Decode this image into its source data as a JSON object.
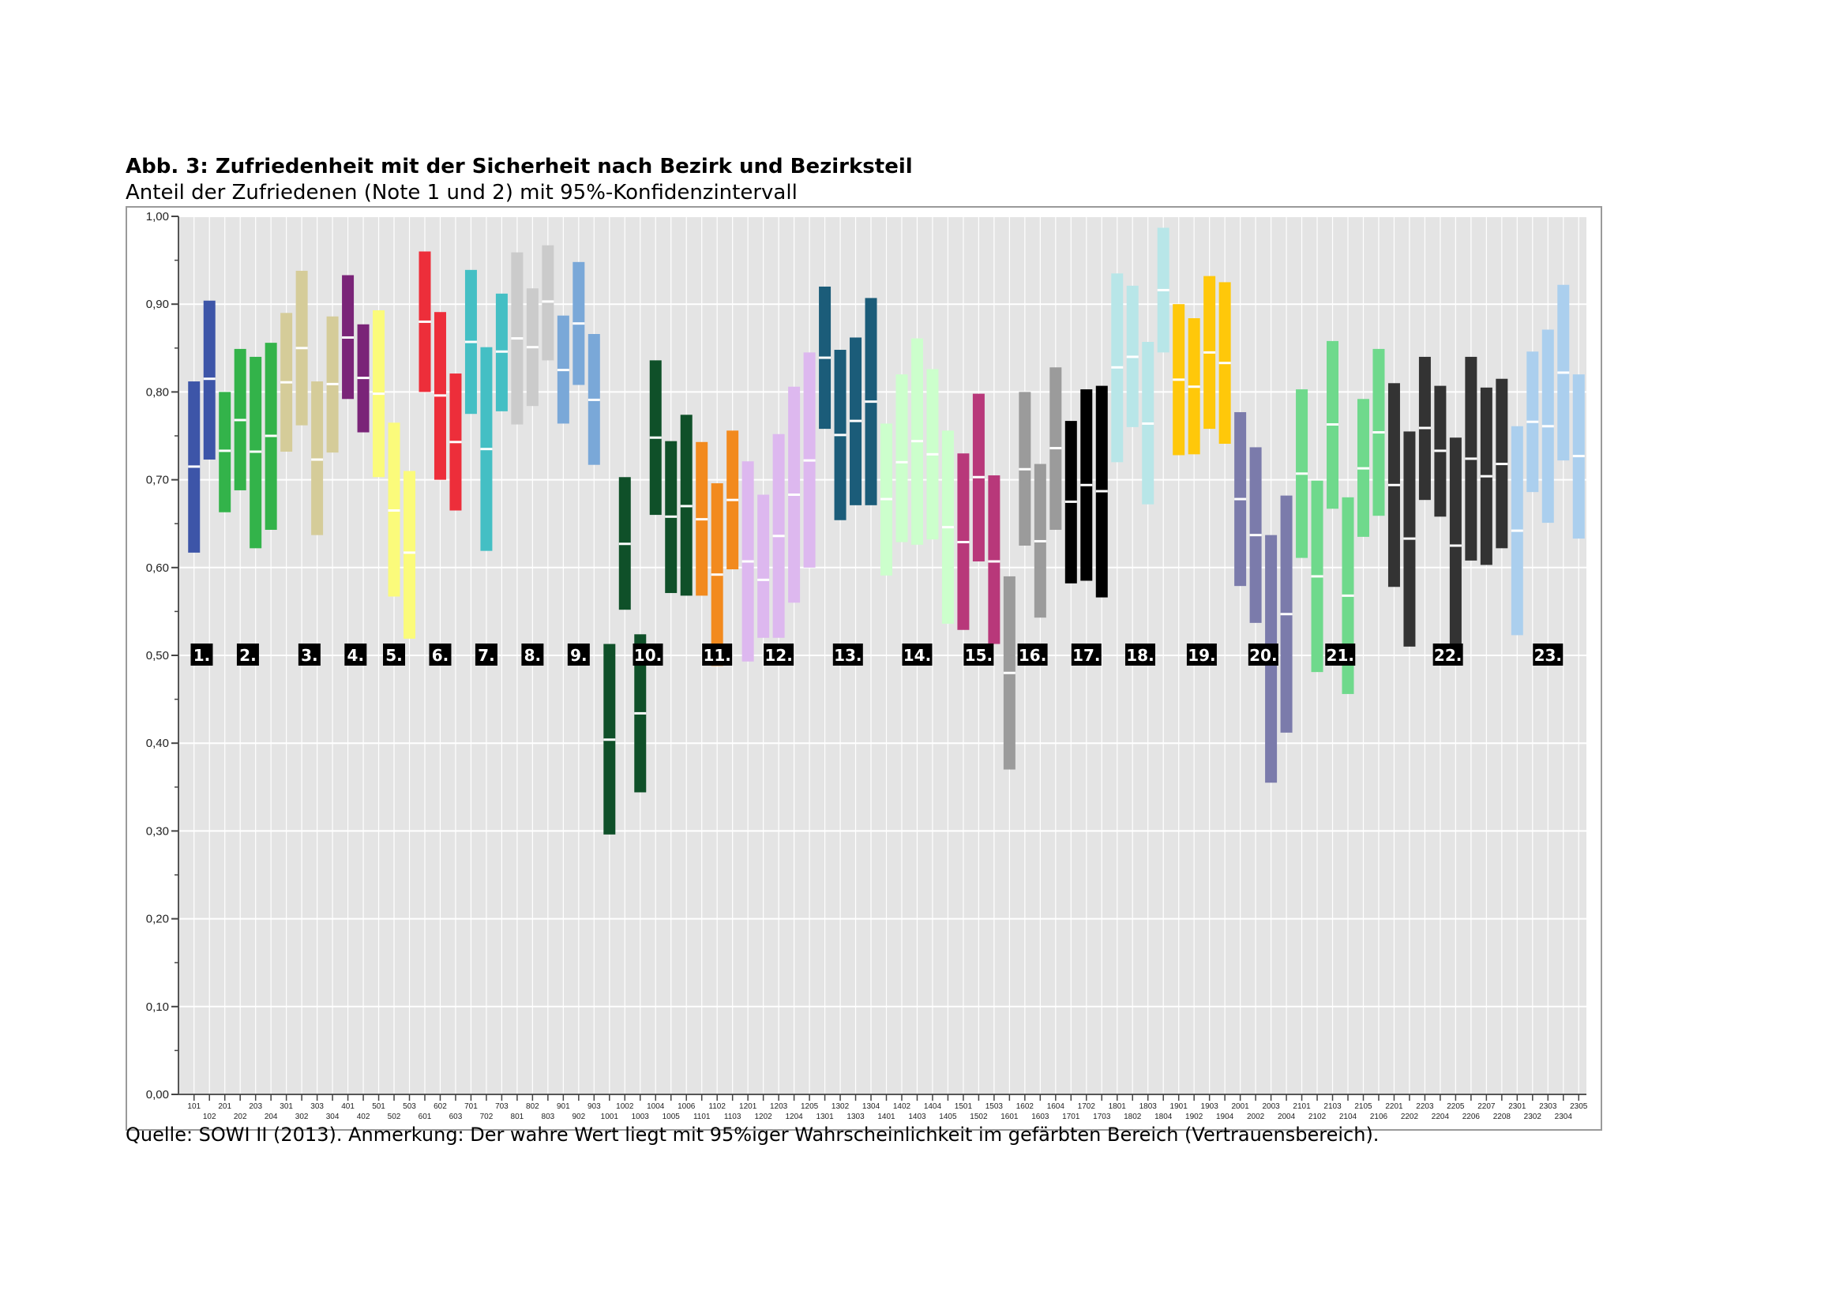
{
  "chart_data": {
    "type": "range-bar",
    "title": "Abb. 3: Zufriedenheit mit der Sicherheit nach Bezirk und Bezirksteil",
    "subtitle": "Anteil der Zufriedenen (Note 1 und 2) mit 95%-Konfidenzintervall",
    "source": "Quelle: SOWI II (2013). Anmerkung: Der wahre Wert liegt mit 95%iger Wahrscheinlichkeit im gefärbten Bereich (Vertrauensbereich).",
    "ylim": [
      0,
      1
    ],
    "y_ticks": [
      "0,00",
      "0,10",
      "0,20",
      "0,30",
      "0,40",
      "0,50",
      "0,60",
      "0,70",
      "0,80",
      "0,90",
      "1,00"
    ],
    "x_labels_top": [
      "101",
      "201",
      "203",
      "301",
      "303",
      "401",
      "501",
      "503",
      "602",
      "701",
      "703",
      "802",
      "901",
      "903",
      "1002",
      "1004",
      "1006",
      "1102",
      "1201",
      "1203",
      "1205",
      "1302",
      "1304",
      "1402",
      "1404",
      "1501",
      "1503",
      "1602",
      "1604",
      "1702",
      "1801",
      "1803",
      "1901",
      "1903",
      "2001",
      "2003",
      "2101",
      "2103",
      "2105",
      "2201",
      "2203",
      "2205",
      "2207",
      "2301",
      "2303",
      "2305"
    ],
    "x_labels_bottom": [
      "102",
      "202",
      "204",
      "302",
      "304",
      "402",
      "502",
      "601",
      "603",
      "702",
      "801",
      "803",
      "902",
      "1001",
      "1003",
      "1005",
      "1101",
      "1103",
      "1202",
      "1204",
      "1301",
      "1303",
      "1401",
      "1403",
      "1405",
      "1502",
      "1601",
      "1603",
      "1701",
      "1703",
      "1802",
      "1804",
      "1902",
      "1904",
      "2002",
      "2004",
      "2102",
      "2104",
      "2106",
      "2202",
      "2204",
      "2206",
      "2208",
      "2302",
      "2304"
    ],
    "groups": [
      {
        "label": "1.",
        "color": "#3d55a8",
        "bars": [
          [
            0.617,
            0.812,
            0.715
          ],
          [
            0.723,
            0.904,
            0.815
          ]
        ]
      },
      {
        "label": "2.",
        "color": "#33b34a",
        "bars": [
          [
            0.663,
            0.8,
            0.733
          ],
          [
            0.688,
            0.849,
            0.768
          ],
          [
            0.622,
            0.84,
            0.732
          ],
          [
            0.643,
            0.856,
            0.75
          ]
        ]
      },
      {
        "label": "3.",
        "color": "#d5cc99",
        "bars": [
          [
            0.732,
            0.89,
            0.811
          ],
          [
            0.762,
            0.938,
            0.85
          ],
          [
            0.637,
            0.812,
            0.723
          ],
          [
            0.731,
            0.886,
            0.809
          ]
        ]
      },
      {
        "label": "4.",
        "color": "#7a2478",
        "bars": [
          [
            0.792,
            0.933,
            0.862
          ],
          [
            0.754,
            0.877,
            0.816
          ]
        ]
      },
      {
        "label": "5.",
        "color": "#fbfb7b",
        "bars": [
          [
            0.703,
            0.893,
            0.798
          ],
          [
            0.567,
            0.765,
            0.665
          ],
          [
            0.519,
            0.71,
            0.617
          ]
        ]
      },
      {
        "label": "6.",
        "color": "#ed2e3a",
        "bars": [
          [
            0.8,
            0.96,
            0.88
          ],
          [
            0.7,
            0.891,
            0.796
          ],
          [
            0.665,
            0.821,
            0.743
          ]
        ]
      },
      {
        "label": "7.",
        "color": "#44bfc4",
        "bars": [
          [
            0.775,
            0.939,
            0.857
          ],
          [
            0.619,
            0.851,
            0.735
          ],
          [
            0.778,
            0.912,
            0.846
          ]
        ]
      },
      {
        "label": "8.",
        "color": "#cbcbcb",
        "bars": [
          [
            0.763,
            0.959,
            0.861
          ],
          [
            0.784,
            0.918,
            0.851
          ],
          [
            0.836,
            0.967,
            0.903
          ]
        ]
      },
      {
        "label": "9.",
        "color": "#7aa8d8",
        "bars": [
          [
            0.764,
            0.887,
            0.825
          ],
          [
            0.808,
            0.948,
            0.878
          ],
          [
            0.717,
            0.866,
            0.791
          ]
        ]
      },
      {
        "label": "10.",
        "color": "#0f5029",
        "bars": [
          [
            0.296,
            0.513,
            0.404
          ],
          [
            0.552,
            0.703,
            0.627
          ],
          [
            0.344,
            0.524,
            0.434
          ],
          [
            0.66,
            0.836,
            0.748
          ],
          [
            0.571,
            0.744,
            0.658
          ],
          [
            0.568,
            0.774,
            0.67
          ]
        ]
      },
      {
        "label": "11.",
        "color": "#f28a1e",
        "bars": [
          [
            0.568,
            0.743,
            0.655
          ],
          [
            0.488,
            0.696,
            0.592
          ],
          [
            0.598,
            0.756,
            0.677
          ]
        ]
      },
      {
        "label": "12.",
        "color": "#ddb8ef",
        "bars": [
          [
            0.493,
            0.721,
            0.607
          ],
          [
            0.52,
            0.683,
            0.586
          ],
          [
            0.52,
            0.752,
            0.636
          ],
          [
            0.56,
            0.806,
            0.683
          ],
          [
            0.6,
            0.845,
            0.722
          ]
        ]
      },
      {
        "label": "13.",
        "color": "#1b5c79",
        "bars": [
          [
            0.758,
            0.92,
            0.839
          ],
          [
            0.654,
            0.848,
            0.751
          ],
          [
            0.671,
            0.862,
            0.767
          ],
          [
            0.671,
            0.907,
            0.789
          ]
        ]
      },
      {
        "label": "14.",
        "color": "#ccffcc",
        "bars": [
          [
            0.591,
            0.764,
            0.678
          ],
          [
            0.629,
            0.82,
            0.72
          ],
          [
            0.626,
            0.861,
            0.744
          ],
          [
            0.632,
            0.826,
            0.729
          ],
          [
            0.536,
            0.756,
            0.646
          ]
        ]
      },
      {
        "label": "15.",
        "color": "#b8387a",
        "bars": [
          [
            0.529,
            0.73,
            0.629
          ],
          [
            0.607,
            0.798,
            0.703
          ],
          [
            0.513,
            0.705,
            0.607
          ]
        ]
      },
      {
        "label": "16.",
        "color": "#9b9b9b",
        "bars": [
          [
            0.37,
            0.59,
            0.48
          ],
          [
            0.625,
            0.8,
            0.712
          ],
          [
            0.543,
            0.718,
            0.63
          ],
          [
            0.643,
            0.828,
            0.736
          ]
        ]
      },
      {
        "label": "17.",
        "color": "#000000",
        "bars": [
          [
            0.582,
            0.767,
            0.675
          ],
          [
            0.585,
            0.803,
            0.694
          ],
          [
            0.566,
            0.807,
            0.687
          ]
        ]
      },
      {
        "label": "18.",
        "color": "#b8e6e8",
        "bars": [
          [
            0.72,
            0.935,
            0.828
          ],
          [
            0.76,
            0.921,
            0.84
          ],
          [
            0.672,
            0.857,
            0.764
          ],
          [
            0.845,
            0.987,
            0.916
          ]
        ]
      },
      {
        "label": "19.",
        "color": "#ffc80a",
        "bars": [
          [
            0.728,
            0.9,
            0.814
          ],
          [
            0.729,
            0.884,
            0.806
          ],
          [
            0.758,
            0.932,
            0.845
          ],
          [
            0.741,
            0.925,
            0.833
          ]
        ]
      },
      {
        "label": "20.",
        "color": "#7b7bab",
        "bars": [
          [
            0.579,
            0.777,
            0.678
          ],
          [
            0.537,
            0.737,
            0.637
          ],
          [
            0.355,
            0.637,
            0.496
          ],
          [
            0.412,
            0.682,
            0.547
          ]
        ]
      },
      {
        "label": "21.",
        "color": "#6fd98c",
        "bars": [
          [
            0.611,
            0.803,
            0.707
          ],
          [
            0.481,
            0.699,
            0.59
          ],
          [
            0.667,
            0.858,
            0.763
          ],
          [
            0.456,
            0.68,
            0.568
          ],
          [
            0.635,
            0.792,
            0.713
          ],
          [
            0.659,
            0.849,
            0.754
          ]
        ]
      },
      {
        "label": "22.",
        "color": "#333333",
        "bars": [
          [
            0.578,
            0.81,
            0.694
          ],
          [
            0.51,
            0.755,
            0.633
          ],
          [
            0.677,
            0.84,
            0.759
          ],
          [
            0.658,
            0.807,
            0.733
          ],
          [
            0.502,
            0.748,
            0.625
          ],
          [
            0.608,
            0.84,
            0.724
          ],
          [
            0.603,
            0.805,
            0.704
          ],
          [
            0.622,
            0.815,
            0.718
          ]
        ]
      },
      {
        "label": "23.",
        "color": "#abcfee",
        "bars": [
          [
            0.523,
            0.761,
            0.642
          ],
          [
            0.686,
            0.846,
            0.766
          ],
          [
            0.651,
            0.871,
            0.761
          ],
          [
            0.722,
            0.922,
            0.822
          ],
          [
            0.633,
            0.82,
            0.727
          ]
        ]
      }
    ]
  }
}
